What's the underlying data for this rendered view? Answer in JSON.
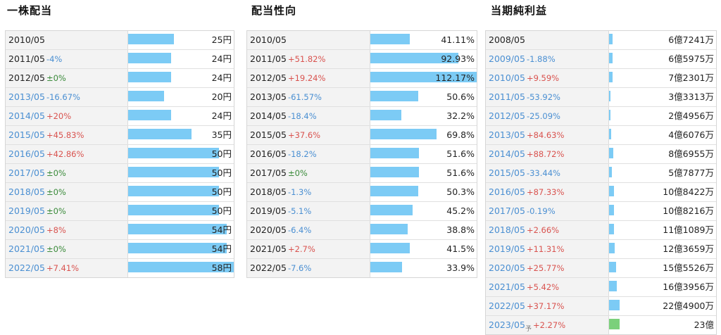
{
  "sections": [
    {
      "id": "dividend",
      "title": "一株配当",
      "rows": [
        {
          "year": "2010/05",
          "link": false,
          "change": "",
          "value": "25円",
          "bar": 0.43
        },
        {
          "year": "2011/05",
          "link": false,
          "change": "-4%",
          "value": "24円",
          "bar": 0.41
        },
        {
          "year": "2012/05",
          "link": false,
          "change": "±0%",
          "value": "24円",
          "bar": 0.41
        },
        {
          "year": "2013/05",
          "link": true,
          "change": "-16.67%",
          "value": "20円",
          "bar": 0.34
        },
        {
          "year": "2014/05",
          "link": true,
          "change": "+20%",
          "value": "24円",
          "bar": 0.41
        },
        {
          "year": "2015/05",
          "link": true,
          "change": "+45.83%",
          "value": "35円",
          "bar": 0.6
        },
        {
          "year": "2016/05",
          "link": true,
          "change": "+42.86%",
          "value": "50円",
          "bar": 0.86
        },
        {
          "year": "2017/05",
          "link": true,
          "change": "±0%",
          "value": "50円",
          "bar": 0.86
        },
        {
          "year": "2018/05",
          "link": true,
          "change": "±0%",
          "value": "50円",
          "bar": 0.86
        },
        {
          "year": "2019/05",
          "link": true,
          "change": "±0%",
          "value": "50円",
          "bar": 0.86
        },
        {
          "year": "2020/05",
          "link": true,
          "change": "+8%",
          "value": "54円",
          "bar": 0.93
        },
        {
          "year": "2021/05",
          "link": true,
          "change": "±0%",
          "value": "54円",
          "bar": 0.93
        },
        {
          "year": "2022/05",
          "link": true,
          "change": "+7.41%",
          "value": "58円",
          "bar": 1.0
        }
      ]
    },
    {
      "id": "payout",
      "title": "配当性向",
      "rows": [
        {
          "year": "2010/05",
          "link": false,
          "change": "",
          "value": "41.11%",
          "bar": 0.37
        },
        {
          "year": "2011/05",
          "link": false,
          "change": "+51.82%",
          "value": "92.93%",
          "bar": 0.83
        },
        {
          "year": "2012/05",
          "link": false,
          "change": "+19.24%",
          "value": "112.17%",
          "bar": 1.0
        },
        {
          "year": "2013/05",
          "link": false,
          "change": "-61.57%",
          "value": "50.6%",
          "bar": 0.45
        },
        {
          "year": "2014/05",
          "link": false,
          "change": "-18.4%",
          "value": "32.2%",
          "bar": 0.29
        },
        {
          "year": "2015/05",
          "link": false,
          "change": "+37.6%",
          "value": "69.8%",
          "bar": 0.62
        },
        {
          "year": "2016/05",
          "link": false,
          "change": "-18.2%",
          "value": "51.6%",
          "bar": 0.46
        },
        {
          "year": "2017/05",
          "link": false,
          "change": "±0%",
          "value": "51.6%",
          "bar": 0.46
        },
        {
          "year": "2018/05",
          "link": false,
          "change": "-1.3%",
          "value": "50.3%",
          "bar": 0.45
        },
        {
          "year": "2019/05",
          "link": false,
          "change": "-5.1%",
          "value": "45.2%",
          "bar": 0.4
        },
        {
          "year": "2020/05",
          "link": false,
          "change": "-6.4%",
          "value": "38.8%",
          "bar": 0.35
        },
        {
          "year": "2021/05",
          "link": false,
          "change": "+2.7%",
          "value": "41.5%",
          "bar": 0.37
        },
        {
          "year": "2022/05",
          "link": false,
          "change": "-7.6%",
          "value": "33.9%",
          "bar": 0.3
        }
      ]
    },
    {
      "id": "netincome",
      "title": "当期純利益",
      "rows": [
        {
          "year": "2008/05",
          "link": false,
          "change": "",
          "value": "6億7241万",
          "bar": 0.03
        },
        {
          "year": "2009/05",
          "link": true,
          "change": "-1.88%",
          "value": "6億5975万",
          "bar": 0.03
        },
        {
          "year": "2010/05",
          "link": true,
          "change": "+9.59%",
          "value": "7億2301万",
          "bar": 0.03
        },
        {
          "year": "2011/05",
          "link": true,
          "change": "-53.92%",
          "value": "3億3313万",
          "bar": 0.015
        },
        {
          "year": "2012/05",
          "link": true,
          "change": "-25.09%",
          "value": "2億4956万",
          "bar": 0.011
        },
        {
          "year": "2013/05",
          "link": true,
          "change": "+84.63%",
          "value": "4億6076万",
          "bar": 0.02
        },
        {
          "year": "2014/05",
          "link": true,
          "change": "+88.72%",
          "value": "8億6955万",
          "bar": 0.038
        },
        {
          "year": "2015/05",
          "link": true,
          "change": "-33.44%",
          "value": "5億7877万",
          "bar": 0.025
        },
        {
          "year": "2016/05",
          "link": true,
          "change": "+87.33%",
          "value": "10億8422万",
          "bar": 0.047
        },
        {
          "year": "2017/05",
          "link": true,
          "change": "-0.19%",
          "value": "10億8216万",
          "bar": 0.047
        },
        {
          "year": "2018/05",
          "link": true,
          "change": "+2.66%",
          "value": "11億1089万",
          "bar": 0.048
        },
        {
          "year": "2019/05",
          "link": true,
          "change": "+11.31%",
          "value": "12億3659万",
          "bar": 0.054
        },
        {
          "year": "2020/05",
          "link": true,
          "change": "+25.77%",
          "value": "15億5526万",
          "bar": 0.068
        },
        {
          "year": "2021/05",
          "link": true,
          "change": "+5.42%",
          "value": "16億3956万",
          "bar": 0.071
        },
        {
          "year": "2022/05",
          "link": true,
          "change": "+37.17%",
          "value": "22億4900万",
          "bar": 0.098
        },
        {
          "year": "2023/05",
          "link": true,
          "forecast_mark": "予",
          "change": "+2.27%",
          "value": "23億",
          "bar": 0.1,
          "estimate": true
        }
      ]
    }
  ]
}
